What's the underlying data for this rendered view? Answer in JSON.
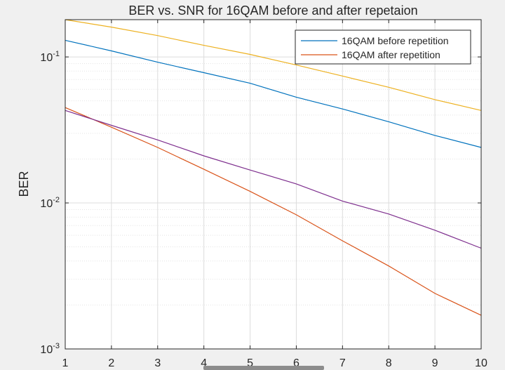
{
  "chart_data": {
    "type": "line",
    "title": "BER vs. SNR for 16QAM before and after repetaion",
    "xlabel": "",
    "ylabel": "BER",
    "xlim": [
      1,
      10
    ],
    "ylim": [
      0.001,
      0.18
    ],
    "yscale": "log",
    "grid": true,
    "minor_grid": true,
    "legend_position": "top-right",
    "x_ticks": [
      "1",
      "2",
      "3",
      "4",
      "5",
      "6",
      "7",
      "8",
      "9",
      "10"
    ],
    "y_ticks": [
      {
        "value": 0.001,
        "base": "10",
        "exp": "-3"
      },
      {
        "value": 0.01,
        "base": "10",
        "exp": "-2"
      },
      {
        "value": 0.1,
        "base": "10",
        "exp": "-1"
      }
    ],
    "x": [
      1,
      2,
      3,
      4,
      5,
      6,
      7,
      8,
      9,
      10
    ],
    "series": [
      {
        "name": "16QAM before repetition",
        "color": "#0072bd",
        "values": [
          0.13,
          0.11,
          0.092,
          0.078,
          0.066,
          0.053,
          0.044,
          0.036,
          0.029,
          0.024
        ],
        "in_legend": true
      },
      {
        "name": "16QAM after repetition",
        "color": "#d95319",
        "values": [
          0.045,
          0.033,
          0.024,
          0.017,
          0.012,
          0.0083,
          0.0055,
          0.0037,
          0.0024,
          0.0017
        ],
        "in_legend": true
      },
      {
        "color": "#edb120",
        "values": [
          0.18,
          0.16,
          0.14,
          0.12,
          0.104,
          0.088,
          0.074,
          0.062,
          0.051,
          0.043
        ],
        "in_legend": false
      },
      {
        "color": "#7e2f8e",
        "values": [
          0.043,
          0.034,
          0.027,
          0.021,
          0.0168,
          0.0135,
          0.0103,
          0.0084,
          0.0065,
          0.0049
        ],
        "in_legend": false
      }
    ]
  }
}
